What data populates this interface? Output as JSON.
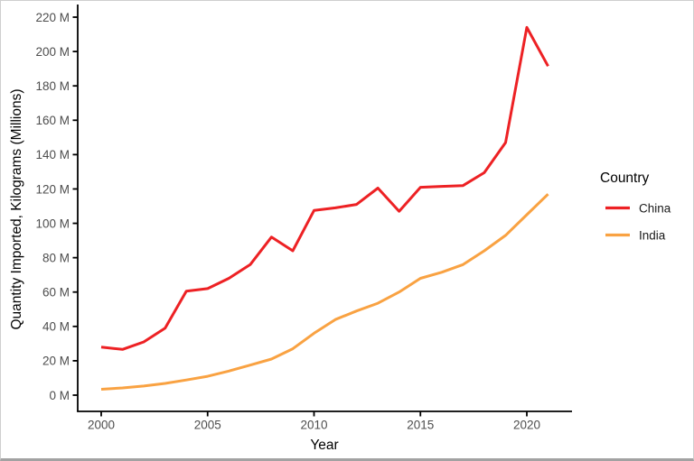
{
  "chart_data": {
    "type": "line",
    "title": "",
    "xlabel": "Year",
    "ylabel": "Quantity Imported, Kilograms (Millions)",
    "legend_title": "Country",
    "legend_position": "right",
    "grid": false,
    "background": "#ffffff",
    "axis_color": "#000000",
    "tick_label_color": "#4d4d4d",
    "xlim": [
      2000,
      2021
    ],
    "ylim": [
      0,
      220
    ],
    "xticks": [
      2000,
      2005,
      2010,
      2015,
      2020
    ],
    "xtick_labels": [
      "2000",
      "2005",
      "2010",
      "2015",
      "2020"
    ],
    "yticks": [
      0,
      20,
      40,
      60,
      80,
      100,
      120,
      140,
      160,
      180,
      200,
      220
    ],
    "ytick_labels": [
      "0 M",
      "20 M",
      "40 M",
      "60 M",
      "80 M",
      "100 M",
      "120 M",
      "140 M",
      "160 M",
      "180 M",
      "200 M",
      "220 M"
    ],
    "x": [
      2000,
      2001,
      2002,
      2003,
      2004,
      2005,
      2006,
      2007,
      2008,
      2009,
      2010,
      2011,
      2012,
      2013,
      2014,
      2015,
      2016,
      2017,
      2018,
      2019,
      2020,
      2021
    ],
    "series": [
      {
        "name": "China",
        "color": "#ed2124",
        "values": [
          28,
          26.6,
          31,
          39,
          60.5,
          62,
          68,
          76,
          92,
          84,
          107.5,
          109,
          111,
          120.5,
          107,
          121,
          121.5,
          122,
          129.5,
          147,
          214,
          191.5
        ]
      },
      {
        "name": "India",
        "color": "#f9a242",
        "values": [
          3.4,
          4.2,
          5.3,
          6.8,
          8.8,
          11,
          14,
          17.5,
          21,
          27,
          36,
          44,
          49,
          53.5,
          60,
          68,
          71.5,
          76,
          84,
          93,
          105,
          117
        ]
      }
    ]
  }
}
